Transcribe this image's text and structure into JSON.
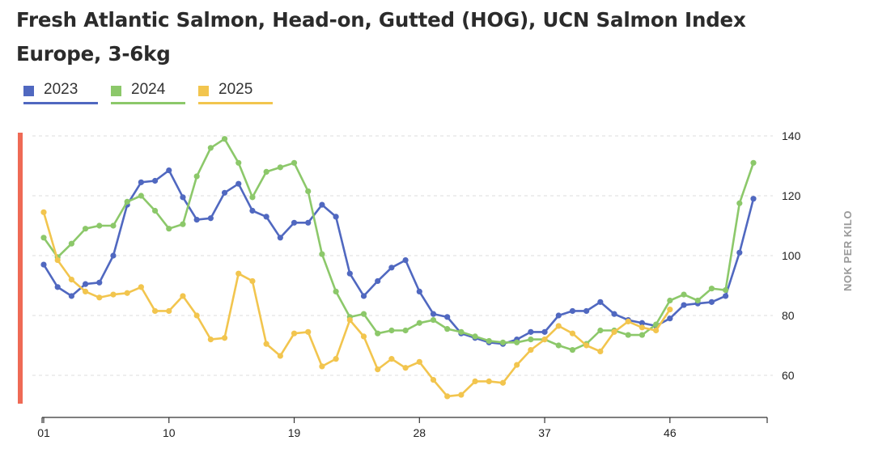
{
  "title": "Fresh Atlantic Salmon, Head-on, Gutted (HOG), UCN Salmon Index Europe, 3-6kg",
  "legend": [
    {
      "label": "2023",
      "color": "#5068c0"
    },
    {
      "label": "2024",
      "color": "#8cc86a"
    },
    {
      "label": "2025",
      "color": "#f2c54e"
    }
  ],
  "accent_color": "#ef6a55",
  "chart_data": {
    "type": "line",
    "title": "Fresh Atlantic Salmon, Head-on, Gutted (HOG), UCN Salmon Index Europe, 3-6kg",
    "xlabel": "",
    "ylabel": "NOK PER KILO",
    "x_ticks": [
      "01",
      "10",
      "19",
      "28",
      "37",
      "46"
    ],
    "y_ticks": [
      60,
      80,
      100,
      120,
      140
    ],
    "ylim": [
      50,
      142
    ],
    "xlim": [
      1,
      53
    ],
    "grid": "horizontal dashed",
    "series": [
      {
        "name": "2023",
        "color": "#5068c0",
        "start_week": 1,
        "values": [
          97,
          89.5,
          86.5,
          90.5,
          91,
          100,
          117,
          124.5,
          125,
          128.5,
          119.5,
          112,
          112.5,
          121,
          124,
          115,
          113,
          106,
          111,
          111,
          117,
          113,
          94,
          86.5,
          91.5,
          96,
          98.5,
          88,
          80.5,
          79.5,
          74,
          72.5,
          71,
          70.5,
          72,
          74.5,
          74.5,
          80,
          81.5,
          81.5,
          84.5,
          80.5,
          78.5,
          77.5,
          76.5,
          79,
          83.5,
          84,
          84.5,
          86.5,
          101,
          119
        ]
      },
      {
        "name": "2024",
        "color": "#8cc86a",
        "start_week": 1,
        "values": [
          106,
          99.5,
          104,
          109,
          110,
          110,
          118,
          120,
          115,
          109,
          110.5,
          126.5,
          136,
          139,
          131,
          119.5,
          128,
          129.5,
          131,
          121.5,
          100.5,
          88,
          79.5,
          80.5,
          74,
          75,
          75,
          77.5,
          78.5,
          75.5,
          74.5,
          73,
          71.5,
          71,
          71,
          72,
          72,
          70,
          68.5,
          70.5,
          75,
          75,
          73.5,
          73.5,
          77,
          85,
          87,
          85,
          89,
          88.5,
          117.5,
          131
        ]
      },
      {
        "name": "2025",
        "color": "#f2c54e",
        "start_week": 1,
        "values": [
          114.5,
          98.5,
          92,
          88,
          86,
          87,
          87.5,
          89.5,
          81.5,
          81.5,
          86.5,
          80,
          72,
          72.5,
          94,
          91.5,
          70.5,
          66.5,
          74,
          74.5,
          63,
          65.5,
          78.5,
          73,
          62,
          65.5,
          62.5,
          64.5,
          58.5,
          53,
          53.5,
          58,
          58,
          57.5,
          63.5,
          68.5,
          72,
          76.5,
          74,
          70,
          68,
          74.5,
          78,
          76,
          75,
          82
        ]
      }
    ]
  }
}
